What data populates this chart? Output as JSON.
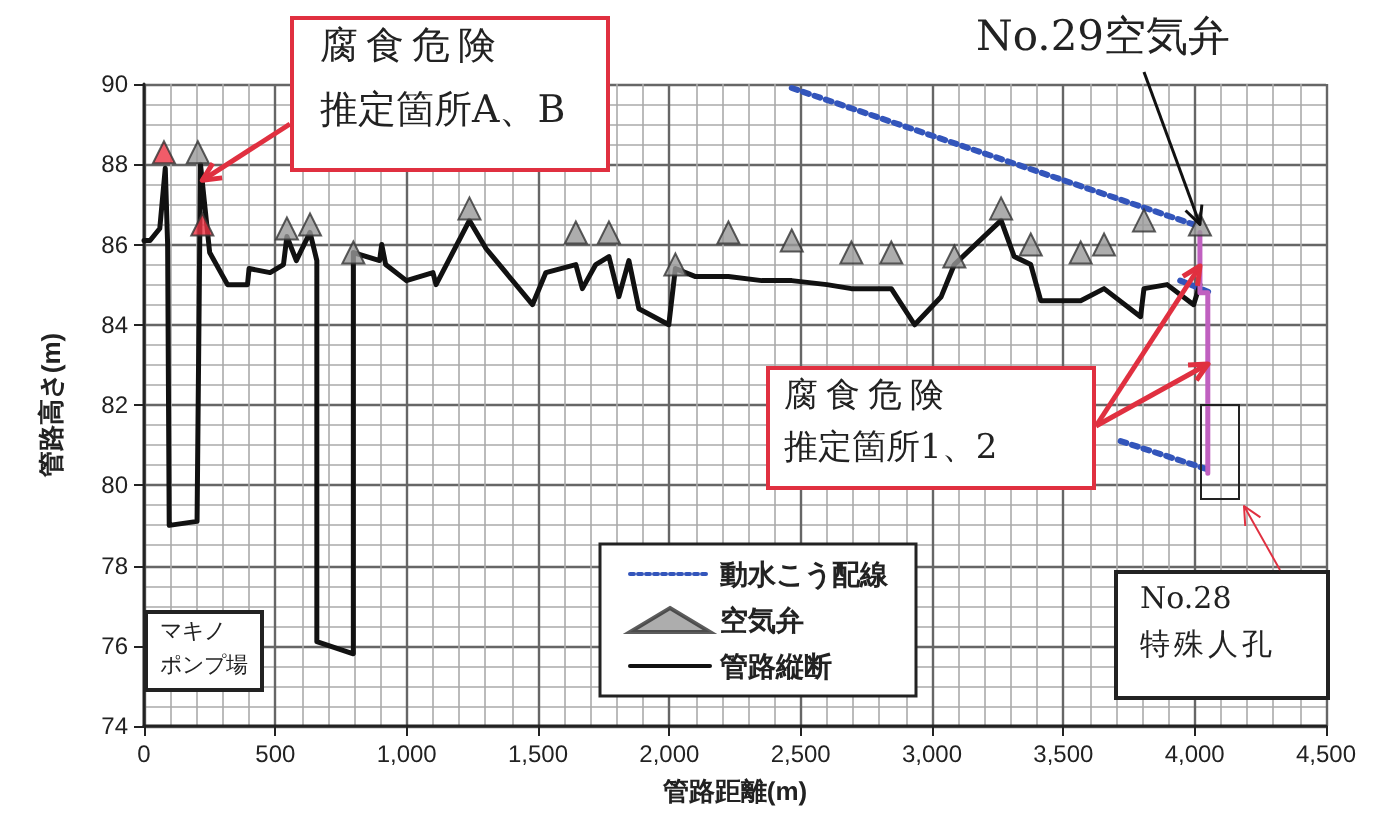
{
  "chart_data": {
    "type": "line",
    "xlabel": "管路距離(m)",
    "ylabel": "管路高さ(m)",
    "xlim": [
      0,
      4500
    ],
    "xticks": [
      0,
      500,
      {
        "value": 1000,
        "label": "1,000"
      },
      {
        "value": 1500,
        "label": "1,500"
      },
      {
        "value": 2000,
        "label": "2,000"
      },
      {
        "value": 2500,
        "label": "2,500"
      },
      {
        "value": 3000,
        "label": "3,000"
      },
      {
        "value": 3500,
        "label": "3,500"
      },
      {
        "value": 4000,
        "label": "4,000"
      },
      {
        "value": 4500,
        "label": "4,500"
      }
    ],
    "ylim": [
      74,
      90
    ],
    "yticks": [
      74,
      76,
      78,
      80,
      82,
      84,
      86,
      88,
      90
    ],
    "grid": true,
    "legend": "bottom",
    "series": [
      {
        "name": "動水こう配線",
        "type": "line",
        "line_style": "dotted",
        "marker": "none",
        "color": "#3355bb",
        "x": [
          2466,
          3996,
          null,
          3945,
          4060,
          null,
          3718,
          4047
        ],
        "values": [
          89.9,
          86.5,
          null,
          85.1,
          84.8,
          null,
          81.1,
          80.4
        ]
      },
      {
        "name": "空気弁",
        "type": "scatter",
        "marker": "triangle",
        "color": "#999999",
        "x": [
          205,
          544,
          632,
          797,
          1239,
          1644,
          1770,
          2023,
          2225,
          2466,
          2693,
          2845,
          3085,
          3263,
          3376,
          3566,
          3655,
          3807,
          4020
        ],
        "values": [
          88.3,
          86.4,
          86.5,
          85.8,
          86.9,
          86.3,
          86.3,
          85.5,
          86.3,
          86.1,
          85.8,
          85.8,
          85.7,
          86.9,
          86.0,
          85.8,
          86.0,
          86.6,
          86.5
        ]
      },
      {
        "name": "管路縦断",
        "line_style": "solid",
        "marker": "none",
        "color": "#111111",
        "x": [
          0,
          23,
          60,
          81,
          90,
          96,
          202,
          215,
          250,
          318,
          394,
          400,
          480,
          531,
          544,
          580,
          632,
          658,
          658,
          797,
          797,
          897,
          905,
          920,
          999,
          1100,
          1112,
          1239,
          1302,
          1479,
          1530,
          1644,
          1669,
          1720,
          1770,
          1808,
          1846,
          1884,
          1998,
          2023,
          2100,
          2225,
          2352,
          2466,
          2600,
          2693,
          2845,
          2934,
          3035,
          3085,
          3263,
          3313,
          3376,
          3414,
          3566,
          3655,
          3794,
          3807,
          3895,
          3996,
          4020
        ],
        "values": [
          86.1,
          86.1,
          86.4,
          87.9,
          86.0,
          79.0,
          79.1,
          88.0,
          85.8,
          85.0,
          85.0,
          85.4,
          85.3,
          85.5,
          86.2,
          85.6,
          86.3,
          85.6,
          76.1,
          75.8,
          85.8,
          85.6,
          86.0,
          85.5,
          85.1,
          85.3,
          85.0,
          86.6,
          85.9,
          84.5,
          85.3,
          85.5,
          84.9,
          85.5,
          85.7,
          84.7,
          85.6,
          84.4,
          84.0,
          85.4,
          85.2,
          85.2,
          85.1,
          85.1,
          85.0,
          84.9,
          84.9,
          84.0,
          84.7,
          85.5,
          86.6,
          85.7,
          85.5,
          84.6,
          84.6,
          84.9,
          84.2,
          84.9,
          85.0,
          84.5,
          85.0
        ]
      },
      {
        "type": "line",
        "line_style": "solid",
        "marker": "none",
        "color": "#c060c0",
        "x": [
          4020,
          4020,
          4050,
          4050
        ],
        "values": [
          86.3,
          84.8,
          84.8,
          80.3
        ]
      },
      {
        "type": "scatter",
        "marker": "triangle",
        "color": "#ee3344",
        "x": [
          76,
          222
        ],
        "values": [
          88.3,
          86.5
        ]
      }
    ],
    "annotations": [
      "腐食危険",
      {
        "text": "推定箇所A、B",
        "x": 222,
        "y": 87.6
      },
      "腐食危険",
      "推定箇所1、2",
      {
        "text": "No.29空気弁",
        "x": 4020,
        "y": 86.5
      },
      "No.28",
      "特殊人孔",
      "マキノ",
      "ポンプ場"
    ]
  }
}
